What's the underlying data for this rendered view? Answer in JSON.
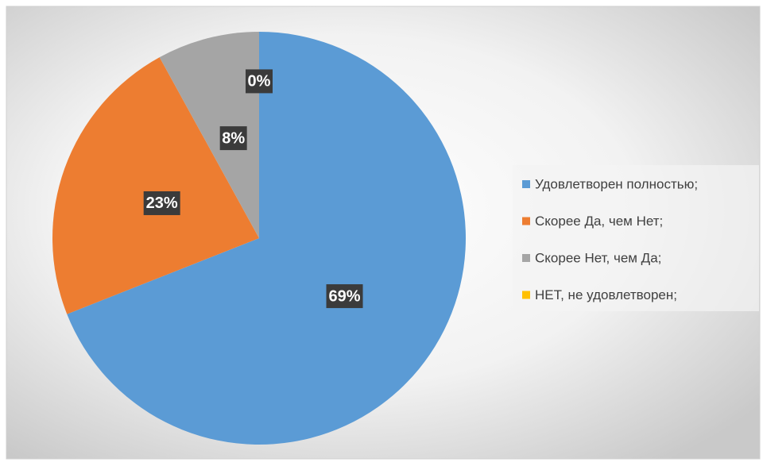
{
  "chart_data": {
    "type": "pie",
    "categories": [
      "Удовлетворен полностью;",
      "Скорее Да, чем Нет;",
      "Скорее Нет, чем Да;",
      "НЕТ, не удовлетворен;"
    ],
    "values": [
      69,
      23,
      8,
      0
    ],
    "value_labels": [
      "69%",
      "23%",
      "8%",
      "0%"
    ],
    "colors": [
      "#5b9bd5",
      "#ed7d31",
      "#a5a5a5",
      "#ffc000"
    ],
    "legend": "right"
  }
}
